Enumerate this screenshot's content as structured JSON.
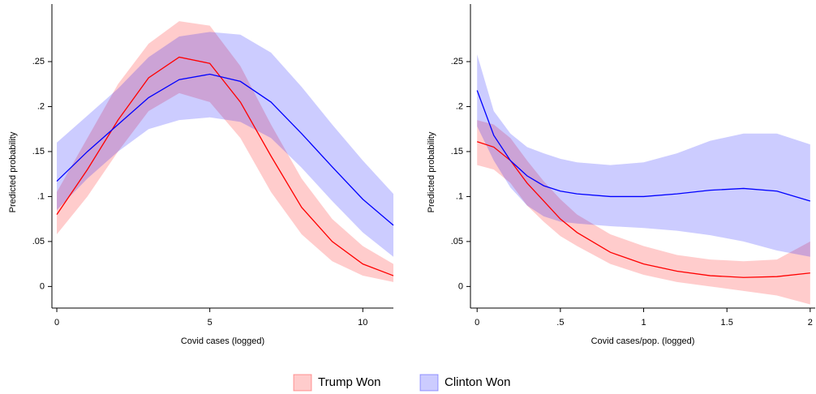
{
  "chart_data": [
    {
      "type": "line",
      "xlabel": "Covid cases (logged)",
      "ylabel": "Predicted probability",
      "x": [
        0,
        1,
        2,
        3,
        4,
        5,
        6,
        7,
        8,
        9,
        10,
        11
      ],
      "series": [
        {
          "name": "Trump Won",
          "color": "#ff0000",
          "values": [
            0.08,
            0.13,
            0.185,
            0.232,
            0.255,
            0.248,
            0.205,
            0.145,
            0.088,
            0.05,
            0.025,
            0.012
          ],
          "lower": [
            0.058,
            0.1,
            0.15,
            0.195,
            0.215,
            0.205,
            0.165,
            0.105,
            0.058,
            0.028,
            0.012,
            0.005
          ],
          "upper": [
            0.105,
            0.165,
            0.225,
            0.27,
            0.295,
            0.29,
            0.245,
            0.18,
            0.12,
            0.075,
            0.045,
            0.025
          ]
        },
        {
          "name": "Clinton Won",
          "color": "#0000ff",
          "values": [
            0.117,
            0.15,
            0.18,
            0.21,
            0.23,
            0.236,
            0.228,
            0.205,
            0.17,
            0.133,
            0.097,
            0.068
          ],
          "lower": [
            0.085,
            0.12,
            0.15,
            0.175,
            0.185,
            0.188,
            0.183,
            0.165,
            0.132,
            0.095,
            0.06,
            0.033
          ],
          "upper": [
            0.16,
            0.19,
            0.22,
            0.255,
            0.278,
            0.283,
            0.28,
            0.26,
            0.222,
            0.18,
            0.14,
            0.103
          ]
        }
      ],
      "xlim": [
        -0.16,
        11
      ],
      "xticks": [
        0,
        5,
        10
      ],
      "ylim": [
        -0.024,
        0.314
      ],
      "yticks": [
        0,
        {
          "value": 0.05,
          "label": ".05"
        },
        {
          "value": 0.1,
          "label": ".1"
        },
        {
          "value": 0.15,
          "label": ".15"
        },
        {
          "value": 0.2,
          "label": ".2"
        },
        {
          "value": 0.25,
          "label": ".25"
        }
      ]
    },
    {
      "type": "line",
      "xlabel": "Covid cases/pop. (logged)",
      "ylabel": "Predicted probability",
      "x": [
        0,
        0.1,
        0.2,
        0.3,
        0.4,
        0.5,
        0.6,
        0.8,
        1,
        1.2,
        1.4,
        1.6,
        1.8,
        2
      ],
      "series": [
        {
          "name": "Trump Won",
          "color": "#ff0000",
          "values": [
            0.161,
            0.155,
            0.14,
            0.115,
            0.095,
            0.075,
            0.06,
            0.038,
            0.025,
            0.017,
            0.012,
            0.01,
            0.011,
            0.015
          ],
          "lower": [
            0.135,
            0.13,
            0.115,
            0.09,
            0.072,
            0.056,
            0.045,
            0.025,
            0.013,
            0.005,
            0,
            -0.005,
            -0.01,
            -0.02
          ],
          "upper": [
            0.185,
            0.18,
            0.165,
            0.14,
            0.117,
            0.097,
            0.08,
            0.058,
            0.045,
            0.035,
            0.03,
            0.028,
            0.03,
            0.05
          ]
        },
        {
          "name": "Clinton Won",
          "color": "#0000ff",
          "values": [
            0.218,
            0.168,
            0.14,
            0.123,
            0.112,
            0.106,
            0.103,
            0.1,
            0.1,
            0.103,
            0.107,
            0.109,
            0.106,
            0.095
          ],
          "lower": [
            0.178,
            0.14,
            0.11,
            0.09,
            0.078,
            0.072,
            0.07,
            0.067,
            0.065,
            0.062,
            0.057,
            0.05,
            0.04,
            0.033
          ],
          "upper": [
            0.258,
            0.195,
            0.17,
            0.155,
            0.148,
            0.142,
            0.138,
            0.135,
            0.138,
            0.148,
            0.162,
            0.17,
            0.17,
            0.158
          ]
        }
      ],
      "xlim": [
        -0.04,
        2.03
      ],
      "xticks": [
        0,
        {
          "value": 0.5,
          "label": ".5"
        },
        1,
        1.5,
        2
      ],
      "ylim": [
        -0.024,
        0.314
      ],
      "yticks": [
        0,
        {
          "value": 0.05,
          "label": ".05"
        },
        {
          "value": 0.1,
          "label": ".1"
        },
        {
          "value": 0.15,
          "label": ".15"
        },
        {
          "value": 0.2,
          "label": ".2"
        },
        {
          "value": 0.25,
          "label": ".25"
        }
      ]
    }
  ]
}
